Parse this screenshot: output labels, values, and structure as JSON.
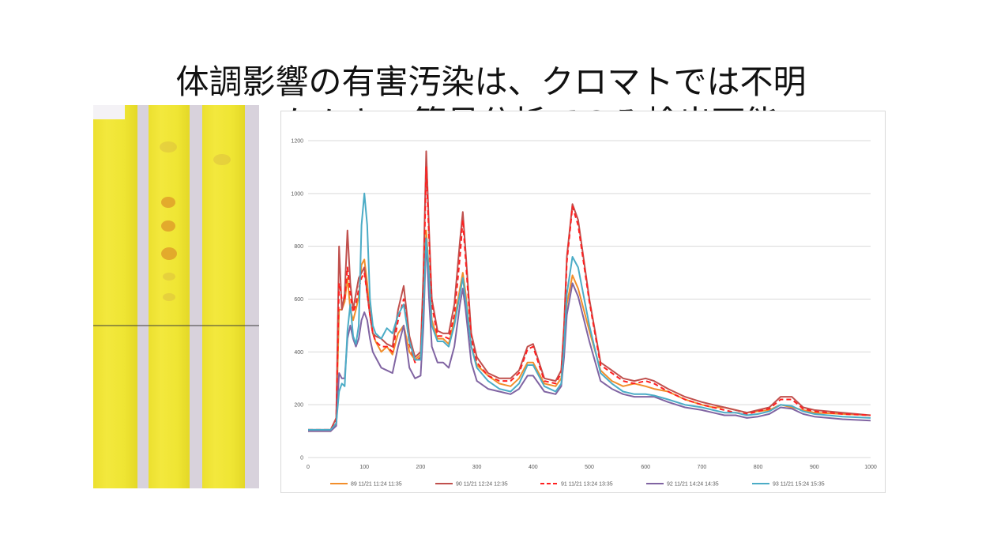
{
  "slide": {
    "title_line1": "体調影響の有害汚染は、クロマトでは不明",
    "title_line2": "ケムキー簡易分析でのみ検出可能"
  },
  "photo": {
    "description_icon": "tlc-plate-image"
  },
  "colors": {
    "s89": "#f28e2b",
    "s90": "#c0504d",
    "s91": "#ff2020",
    "s92": "#8064a2",
    "s93": "#4bacc6"
  },
  "chart_data": {
    "type": "line",
    "title": "",
    "xlabel": "",
    "ylabel": "",
    "xlim": [
      0,
      1000
    ],
    "ylim": [
      0,
      1200
    ],
    "x_ticks": [
      0,
      100,
      200,
      300,
      400,
      500,
      600,
      700,
      800,
      900,
      1000
    ],
    "y_ticks": [
      0,
      200,
      400,
      600,
      800,
      1000,
      1200
    ],
    "grid": "horizontal",
    "legend_position": "bottom",
    "x": [
      0,
      40,
      50,
      55,
      60,
      65,
      70,
      75,
      80,
      85,
      90,
      95,
      100,
      105,
      110,
      115,
      120,
      130,
      140,
      150,
      160,
      170,
      180,
      190,
      200,
      205,
      210,
      215,
      220,
      230,
      240,
      250,
      260,
      270,
      275,
      280,
      290,
      300,
      320,
      340,
      360,
      375,
      390,
      400,
      420,
      440,
      450,
      455,
      460,
      470,
      480,
      500,
      520,
      540,
      560,
      580,
      600,
      615,
      640,
      670,
      700,
      720,
      740,
      760,
      780,
      800,
      820,
      840,
      860,
      880,
      900,
      950,
      1000
    ],
    "series": [
      {
        "name": "89 11/21 11:24 11:35",
        "color": "#f28e2b",
        "dash": false,
        "values": [
          100,
          100,
          130,
          560,
          560,
          590,
          680,
          560,
          520,
          560,
          610,
          730,
          750,
          660,
          540,
          470,
          440,
          400,
          420,
          390,
          470,
          500,
          400,
          370,
          390,
          600,
          860,
          700,
          520,
          450,
          450,
          430,
          520,
          640,
          700,
          620,
          420,
          350,
          310,
          280,
          270,
          300,
          360,
          360,
          280,
          270,
          300,
          420,
          580,
          690,
          640,
          480,
          330,
          290,
          270,
          280,
          270,
          260,
          250,
          220,
          200,
          190,
          190,
          180,
          170,
          175,
          180,
          200,
          190,
          180,
          170,
          165,
          160
        ]
      },
      {
        "name": "90 11/21 12:24 12:35",
        "color": "#c0504d",
        "dash": false,
        "values": [
          105,
          105,
          150,
          800,
          560,
          620,
          860,
          660,
          560,
          620,
          680,
          700,
          720,
          620,
          540,
          470,
          460,
          450,
          430,
          420,
          560,
          650,
          460,
          380,
          400,
          700,
          1160,
          860,
          600,
          480,
          470,
          470,
          580,
          820,
          930,
          780,
          470,
          380,
          320,
          300,
          300,
          330,
          420,
          430,
          300,
          290,
          330,
          500,
          760,
          960,
          900,
          600,
          360,
          330,
          300,
          290,
          300,
          290,
          260,
          230,
          210,
          200,
          190,
          180,
          170,
          180,
          190,
          230,
          230,
          190,
          180,
          170,
          160
        ]
      },
      {
        "name": "91 11/21 13:24 13:35",
        "color": "#ff2020",
        "dash": true,
        "values": [
          105,
          105,
          140,
          660,
          600,
          600,
          720,
          620,
          550,
          580,
          640,
          680,
          700,
          620,
          540,
          470,
          440,
          420,
          420,
          400,
          520,
          600,
          430,
          360,
          380,
          640,
          1100,
          830,
          580,
          460,
          460,
          450,
          540,
          760,
          900,
          750,
          450,
          360,
          310,
          290,
          290,
          320,
          410,
          420,
          290,
          280,
          320,
          480,
          740,
          950,
          880,
          590,
          350,
          320,
          290,
          280,
          290,
          280,
          250,
          220,
          200,
          190,
          180,
          170,
          165,
          175,
          185,
          220,
          220,
          185,
          175,
          165,
          160
        ]
      },
      {
        "name": "92 11/21 14:24 14:35",
        "color": "#8064a2",
        "dash": false,
        "values": [
          100,
          100,
          120,
          320,
          300,
          300,
          450,
          500,
          450,
          420,
          450,
          520,
          550,
          520,
          450,
          400,
          380,
          340,
          330,
          320,
          420,
          500,
          340,
          300,
          310,
          500,
          830,
          600,
          420,
          360,
          360,
          340,
          420,
          580,
          640,
          560,
          360,
          290,
          260,
          250,
          240,
          260,
          310,
          310,
          250,
          240,
          270,
          380,
          540,
          660,
          610,
          440,
          290,
          260,
          240,
          230,
          230,
          230,
          210,
          190,
          180,
          170,
          160,
          160,
          150,
          155,
          165,
          190,
          185,
          165,
          155,
          145,
          140
        ]
      },
      {
        "name": "93 11/21 15:24 15:35",
        "color": "#4bacc6",
        "dash": false,
        "values": [
          105,
          105,
          130,
          250,
          280,
          270,
          480,
          580,
          460,
          430,
          500,
          880,
          1000,
          880,
          600,
          500,
          470,
          450,
          490,
          470,
          540,
          580,
          440,
          370,
          370,
          560,
          830,
          690,
          500,
          440,
          440,
          420,
          500,
          620,
          680,
          600,
          420,
          340,
          290,
          260,
          250,
          280,
          350,
          350,
          270,
          250,
          280,
          420,
          620,
          760,
          720,
          500,
          320,
          280,
          250,
          240,
          240,
          235,
          220,
          200,
          190,
          180,
          170,
          170,
          160,
          165,
          175,
          200,
          195,
          175,
          165,
          155,
          150
        ]
      }
    ]
  }
}
